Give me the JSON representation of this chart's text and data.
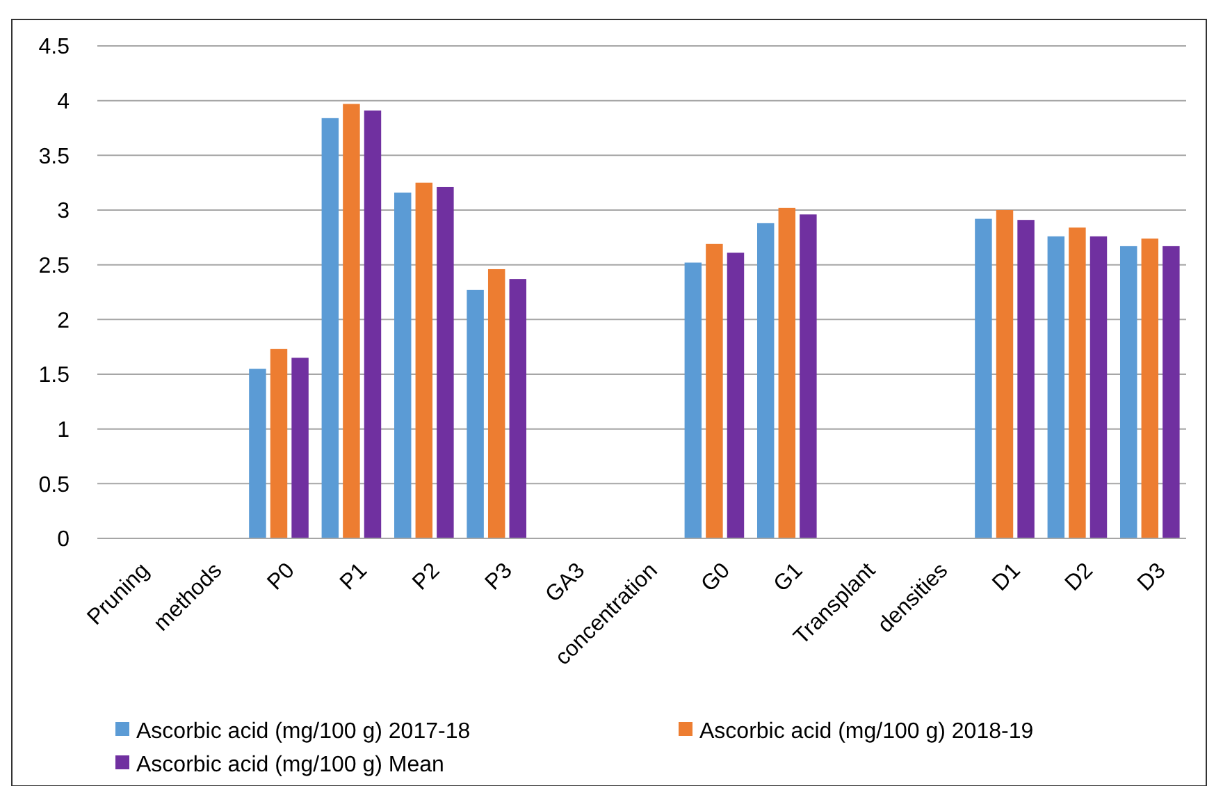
{
  "chart_data": {
    "type": "bar",
    "categories": [
      "Pruning",
      "methods",
      "P0",
      "P1",
      "P2",
      "P3",
      "GA3",
      "concentration",
      "G0",
      "G1",
      "Transplant",
      "densities",
      "D1",
      "D2",
      "D3"
    ],
    "series": [
      {
        "name": "Ascorbic acid (mg/100 g) 2017-18",
        "color": "#5b9bd5",
        "values": [
          null,
          null,
          1.55,
          3.84,
          3.16,
          2.27,
          null,
          null,
          2.52,
          2.88,
          null,
          null,
          2.92,
          2.76,
          2.67
        ]
      },
      {
        "name": "Ascorbic acid (mg/100 g) 2018-19",
        "color": "#ed7d31",
        "values": [
          null,
          null,
          1.73,
          3.97,
          3.25,
          2.46,
          null,
          null,
          2.69,
          3.02,
          null,
          null,
          3.0,
          2.84,
          2.74
        ]
      },
      {
        "name": "Ascorbic acid (mg/100 g) Mean",
        "color": "#7030a0",
        "values": [
          null,
          null,
          1.65,
          3.91,
          3.21,
          2.37,
          null,
          null,
          2.61,
          2.96,
          null,
          null,
          2.91,
          2.76,
          2.67
        ]
      }
    ],
    "ylim": [
      0,
      4.5
    ],
    "yticks": [
      0,
      0.5,
      1,
      1.5,
      2,
      2.5,
      3,
      3.5,
      4,
      4.5
    ],
    "grid": "y",
    "legend": "bottom"
  }
}
